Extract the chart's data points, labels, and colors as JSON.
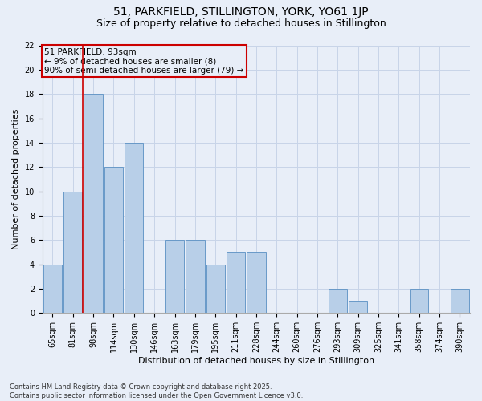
{
  "title_line1": "51, PARKFIELD, STILLINGTON, YORK, YO61 1JP",
  "title_line2": "Size of property relative to detached houses in Stillington",
  "xlabel": "Distribution of detached houses by size in Stillington",
  "ylabel": "Number of detached properties",
  "categories": [
    "65sqm",
    "81sqm",
    "98sqm",
    "114sqm",
    "130sqm",
    "146sqm",
    "163sqm",
    "179sqm",
    "195sqm",
    "211sqm",
    "228sqm",
    "244sqm",
    "260sqm",
    "276sqm",
    "293sqm",
    "309sqm",
    "325sqm",
    "341sqm",
    "358sqm",
    "374sqm",
    "390sqm"
  ],
  "values": [
    4,
    10,
    18,
    12,
    14,
    0,
    6,
    6,
    4,
    5,
    5,
    0,
    0,
    0,
    2,
    1,
    0,
    0,
    2,
    0,
    2
  ],
  "bar_color": "#b8cfe8",
  "bar_edgecolor": "#6899c8",
  "highlight_color": "#cc0000",
  "red_line_x": 1.5,
  "annotation_text": "51 PARKFIELD: 93sqm\n← 9% of detached houses are smaller (8)\n90% of semi-detached houses are larger (79) →",
  "annotation_box_edgecolor": "#cc0000",
  "annotation_box_facecolor": "#e8eef8",
  "ylim": [
    0,
    22
  ],
  "yticks": [
    0,
    2,
    4,
    6,
    8,
    10,
    12,
    14,
    16,
    18,
    20,
    22
  ],
  "grid_color": "#c8d4e8",
  "background_color": "#e8eef8",
  "footer_text": "Contains HM Land Registry data © Crown copyright and database right 2025.\nContains public sector information licensed under the Open Government Licence v3.0.",
  "title_fontsize": 10,
  "subtitle_fontsize": 9,
  "axis_label_fontsize": 8,
  "tick_fontsize": 7,
  "annotation_fontsize": 7.5,
  "footer_fontsize": 6
}
